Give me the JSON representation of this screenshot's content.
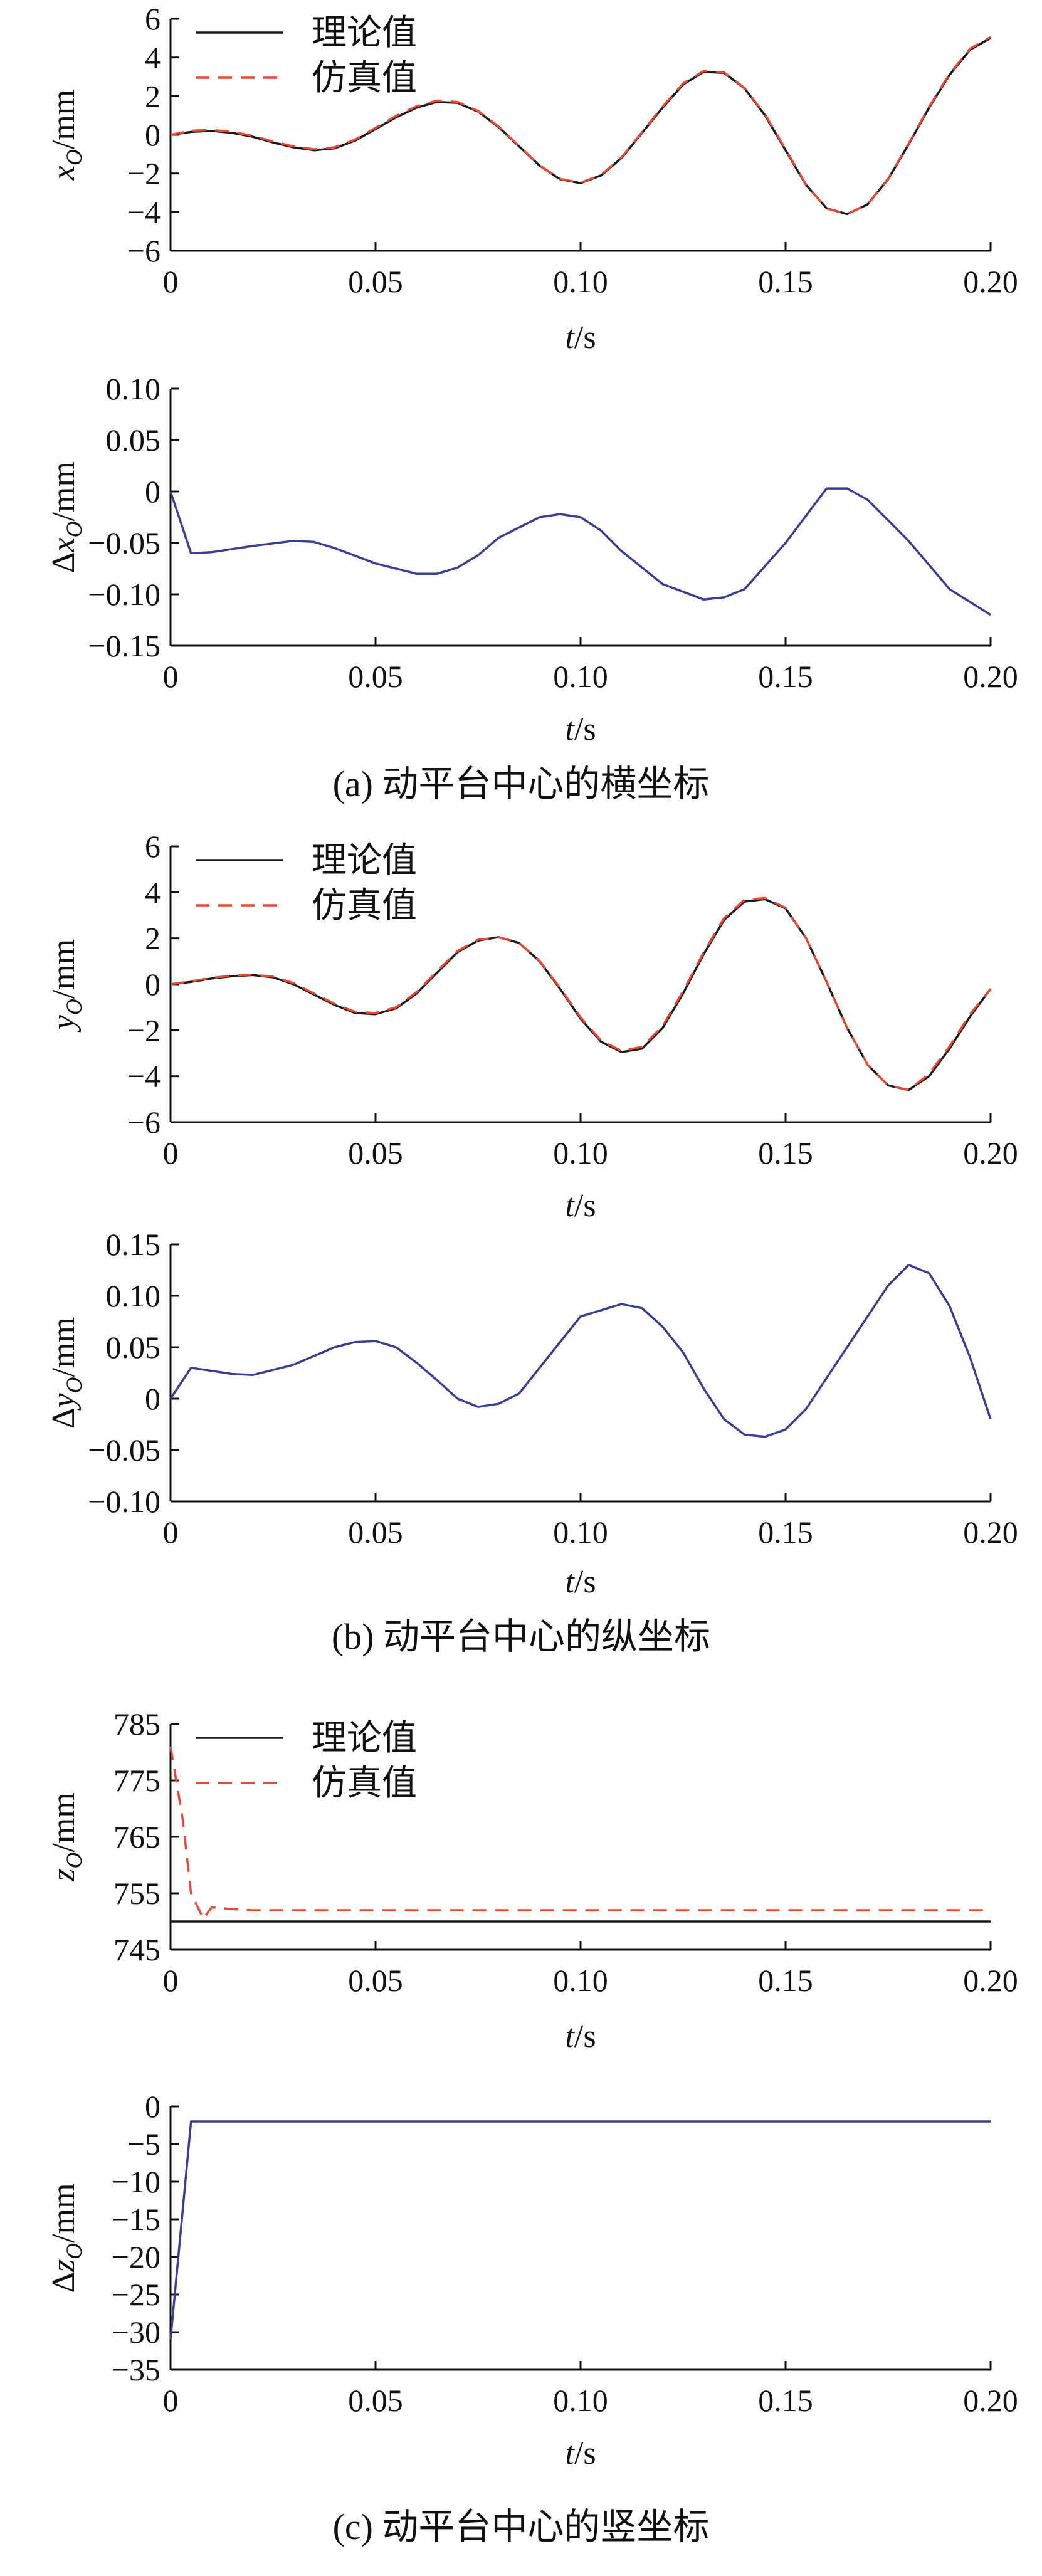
{
  "chart_data": [
    {
      "type": "line",
      "panel": "a-top",
      "xlabel": "t/s",
      "ylabel": "x_O/mm",
      "xlim": [
        0,
        0.2
      ],
      "ylim": [
        -6,
        6
      ],
      "xticks": [
        "0",
        "0.05",
        "0.10",
        "0.15",
        "0.20"
      ],
      "yticks": [
        "6",
        "4",
        "2",
        "0",
        "−2",
        "−4",
        "−6"
      ],
      "legend": "top-left",
      "series": [
        {
          "name": "理论值",
          "style": "solid",
          "color": "#1a1a1a",
          "x": [
            0,
            0.005,
            0.01,
            0.015,
            0.02,
            0.025,
            0.03,
            0.035,
            0.04,
            0.045,
            0.05,
            0.055,
            0.06,
            0.065,
            0.07,
            0.075,
            0.08,
            0.085,
            0.09,
            0.095,
            0.1,
            0.105,
            0.11,
            0.115,
            0.12,
            0.125,
            0.13,
            0.135,
            0.14,
            0.145,
            0.15,
            0.155,
            0.16,
            0.165,
            0.17,
            0.175,
            0.18,
            0.185,
            0.19,
            0.195,
            0.2
          ],
          "y": [
            0,
            0.15,
            0.2,
            0.1,
            -0.1,
            -0.4,
            -0.65,
            -0.8,
            -0.7,
            -0.3,
            0.3,
            0.9,
            1.4,
            1.7,
            1.65,
            1.2,
            0.4,
            -0.6,
            -1.6,
            -2.3,
            -2.5,
            -2.1,
            -1.2,
            0.1,
            1.4,
            2.6,
            3.25,
            3.2,
            2.4,
            1.0,
            -0.8,
            -2.6,
            -3.8,
            -4.1,
            -3.6,
            -2.3,
            -0.5,
            1.4,
            3.1,
            4.4,
            5.0
          ]
        },
        {
          "name": "仿真值",
          "style": "dashed",
          "color": "#e24b3b",
          "x": [
            0,
            0.005,
            0.01,
            0.015,
            0.02,
            0.025,
            0.03,
            0.035,
            0.04,
            0.045,
            0.05,
            0.055,
            0.06,
            0.065,
            0.07,
            0.075,
            0.08,
            0.085,
            0.09,
            0.095,
            0.1,
            0.105,
            0.11,
            0.115,
            0.12,
            0.125,
            0.13,
            0.135,
            0.14,
            0.145,
            0.15,
            0.155,
            0.16,
            0.165,
            0.17,
            0.175,
            0.18,
            0.185,
            0.19,
            0.195,
            0.2
          ],
          "y": [
            0,
            0.21,
            0.26,
            0.15,
            -0.05,
            -0.35,
            -0.6,
            -0.75,
            -0.65,
            -0.25,
            0.36,
            0.98,
            1.48,
            1.77,
            1.7,
            1.24,
            0.43,
            -0.58,
            -1.58,
            -2.28,
            -2.48,
            -2.07,
            -1.16,
            0.14,
            1.46,
            2.66,
            3.3,
            3.23,
            2.42,
            1.05,
            -0.75,
            -2.58,
            -3.81,
            -4.1,
            -3.59,
            -2.27,
            -0.46,
            1.45,
            3.15,
            4.46,
            5.06
          ]
        }
      ]
    },
    {
      "type": "line",
      "panel": "a-bottom",
      "xlabel": "t/s",
      "ylabel": "Δx_O/mm",
      "xlim": [
        0,
        0.2
      ],
      "ylim": [
        -0.15,
        0.1
      ],
      "xticks": [
        "0",
        "0.05",
        "0.10",
        "0.15",
        "0.20"
      ],
      "yticks": [
        "0.10",
        "0.05",
        "0",
        "−0.05",
        "−0.10",
        "−0.15"
      ],
      "series": [
        {
          "name": "",
          "color": "#3a3f8f",
          "x": [
            0,
            0.005,
            0.01,
            0.02,
            0.03,
            0.035,
            0.04,
            0.05,
            0.06,
            0.065,
            0.07,
            0.075,
            0.08,
            0.09,
            0.095,
            0.1,
            0.105,
            0.11,
            0.12,
            0.13,
            0.135,
            0.14,
            0.15,
            0.16,
            0.165,
            0.17,
            0.18,
            0.19,
            0.2
          ],
          "y": [
            0,
            -0.06,
            -0.059,
            -0.053,
            -0.048,
            -0.049,
            -0.055,
            -0.07,
            -0.08,
            -0.08,
            -0.074,
            -0.062,
            -0.045,
            -0.025,
            -0.022,
            -0.025,
            -0.038,
            -0.058,
            -0.09,
            -0.105,
            -0.103,
            -0.095,
            -0.05,
            0.003,
            0.003,
            -0.008,
            -0.048,
            -0.095,
            -0.12
          ]
        }
      ]
    },
    {
      "type": "line",
      "panel": "b-top",
      "xlabel": "t/s",
      "ylabel": "y_O/mm",
      "xlim": [
        0,
        0.2
      ],
      "ylim": [
        -6,
        6
      ],
      "xticks": [
        "0",
        "0.05",
        "0.10",
        "0.15",
        "0.20"
      ],
      "yticks": [
        "6",
        "4",
        "2",
        "0",
        "−2",
        "−4",
        "−6"
      ],
      "legend": "top-left",
      "series": [
        {
          "name": "理论值",
          "style": "solid",
          "color": "#1a1a1a",
          "x": [
            0,
            0.005,
            0.01,
            0.015,
            0.02,
            0.025,
            0.03,
            0.035,
            0.04,
            0.045,
            0.05,
            0.055,
            0.06,
            0.065,
            0.07,
            0.075,
            0.08,
            0.085,
            0.09,
            0.095,
            0.1,
            0.105,
            0.11,
            0.115,
            0.12,
            0.125,
            0.13,
            0.135,
            0.14,
            0.145,
            0.15,
            0.155,
            0.16,
            0.165,
            0.17,
            0.175,
            0.18,
            0.185,
            0.19,
            0.195,
            0.2
          ],
          "y": [
            0,
            0.1,
            0.25,
            0.35,
            0.4,
            0.3,
            0.0,
            -0.45,
            -0.9,
            -1.25,
            -1.3,
            -1.05,
            -0.4,
            0.5,
            1.4,
            1.9,
            2.05,
            1.8,
            1.0,
            -0.2,
            -1.5,
            -2.5,
            -2.95,
            -2.8,
            -1.9,
            -0.4,
            1.3,
            2.8,
            3.6,
            3.7,
            3.3,
            2.0,
            0.1,
            -1.9,
            -3.5,
            -4.4,
            -4.6,
            -4.0,
            -2.8,
            -1.4,
            -0.2
          ]
        },
        {
          "name": "仿真值",
          "style": "dashed",
          "color": "#e24b3b",
          "x": [
            0,
            0.005,
            0.01,
            0.015,
            0.02,
            0.025,
            0.03,
            0.035,
            0.04,
            0.045,
            0.05,
            0.055,
            0.06,
            0.065,
            0.07,
            0.075,
            0.08,
            0.085,
            0.09,
            0.095,
            0.1,
            0.105,
            0.11,
            0.115,
            0.12,
            0.125,
            0.13,
            0.135,
            0.14,
            0.145,
            0.15,
            0.155,
            0.16,
            0.165,
            0.17,
            0.175,
            0.18,
            0.185,
            0.19,
            0.195,
            0.2
          ],
          "y": [
            0,
            0.13,
            0.28,
            0.37,
            0.42,
            0.33,
            0.05,
            -0.4,
            -0.85,
            -1.2,
            -1.25,
            -1.0,
            -0.34,
            0.56,
            1.45,
            1.94,
            2.04,
            1.8,
            1.02,
            -0.16,
            -1.44,
            -2.45,
            -2.9,
            -2.72,
            -1.82,
            -0.3,
            1.38,
            2.88,
            3.68,
            3.75,
            3.33,
            2.0,
            0.1,
            -1.9,
            -3.5,
            -4.4,
            -4.6,
            -3.9,
            -2.7,
            -1.3,
            -0.2
          ]
        }
      ]
    },
    {
      "type": "line",
      "panel": "b-bottom",
      "xlabel": "t/s",
      "ylabel": "Δy_O/mm",
      "xlim": [
        0,
        0.2
      ],
      "ylim": [
        -0.1,
        0.15
      ],
      "xticks": [
        "0",
        "0.05",
        "0.10",
        "0.15",
        "0.20"
      ],
      "yticks": [
        "0.15",
        "0.10",
        "0.05",
        "0",
        "−0.05",
        "−0.10"
      ],
      "series": [
        {
          "name": "",
          "color": "#3a3f8f",
          "x": [
            0,
            0.005,
            0.01,
            0.015,
            0.02,
            0.03,
            0.04,
            0.045,
            0.05,
            0.055,
            0.06,
            0.065,
            0.07,
            0.075,
            0.08,
            0.085,
            0.09,
            0.1,
            0.11,
            0.115,
            0.12,
            0.125,
            0.13,
            0.135,
            0.14,
            0.145,
            0.15,
            0.155,
            0.16,
            0.17,
            0.175,
            0.18,
            0.185,
            0.19,
            0.195,
            0.2
          ],
          "y": [
            0,
            0.03,
            0.027,
            0.024,
            0.023,
            0.033,
            0.05,
            0.055,
            0.056,
            0.05,
            0.035,
            0.018,
            0.0,
            -0.008,
            -0.005,
            0.005,
            0.03,
            0.08,
            0.092,
            0.088,
            0.07,
            0.045,
            0.01,
            -0.02,
            -0.035,
            -0.037,
            -0.03,
            -0.01,
            0.02,
            0.08,
            0.11,
            0.13,
            0.122,
            0.09,
            0.04,
            -0.02
          ]
        }
      ]
    },
    {
      "type": "line",
      "panel": "c-top",
      "xlabel": "t/s",
      "ylabel": "z_O/mm",
      "xlim": [
        0,
        0.2
      ],
      "ylim": [
        745,
        785
      ],
      "xticks": [
        "0",
        "0.05",
        "0.10",
        "0.15",
        "0.20"
      ],
      "yticks": [
        "785",
        "775",
        "765",
        "755",
        "745"
      ],
      "legend": "top-left",
      "series": [
        {
          "name": "理论值",
          "style": "solid",
          "color": "#1a1a1a",
          "x": [
            0,
            0.2
          ],
          "y": [
            750,
            750
          ]
        },
        {
          "name": "仿真值",
          "style": "dashed",
          "color": "#e24b3b",
          "x": [
            0,
            0.003,
            0.005,
            0.008,
            0.01,
            0.015,
            0.02,
            0.05,
            0.1,
            0.15,
            0.2
          ],
          "y": [
            781,
            768,
            755,
            750.5,
            752.5,
            752.2,
            752,
            752,
            752,
            752,
            752
          ]
        }
      ]
    },
    {
      "type": "line",
      "panel": "c-bottom",
      "xlabel": "t/s",
      "ylabel": "Δz_O/mm",
      "xlim": [
        0,
        0.2
      ],
      "ylim": [
        -35,
        0
      ],
      "xticks": [
        "0",
        "0.05",
        "0.10",
        "0.15",
        "0.20"
      ],
      "yticks": [
        "0",
        "−5",
        "−10",
        "−15",
        "−20",
        "−25",
        "−30",
        "−35"
      ],
      "series": [
        {
          "name": "",
          "color": "#3a3f8f",
          "x": [
            0,
            0.005,
            0.01,
            0.05,
            0.1,
            0.15,
            0.2
          ],
          "y": [
            -31,
            -2,
            -2,
            -2,
            -2,
            -2,
            -2
          ]
        }
      ]
    }
  ],
  "captions": [
    "(a)  动平台中心的横坐标",
    "(b)  动平台中心的纵坐标",
    "(c)  动平台中心的竖坐标"
  ]
}
